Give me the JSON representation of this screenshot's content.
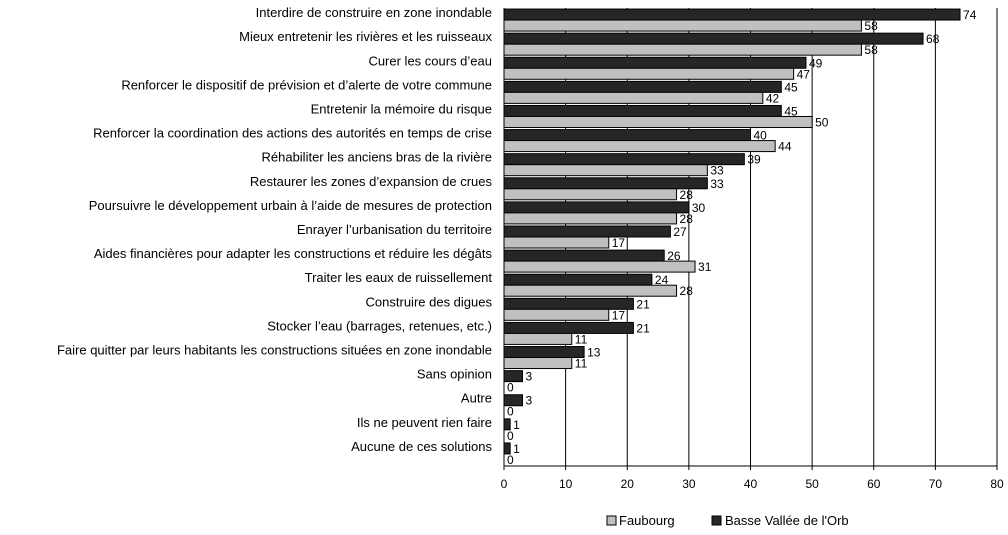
{
  "chart_data": {
    "type": "bar",
    "orientation": "horizontal",
    "title": "",
    "xlabel": "",
    "ylabel": "",
    "xlim": [
      0,
      80
    ],
    "x_ticks": [
      0,
      10,
      20,
      30,
      40,
      50,
      60,
      70,
      80
    ],
    "grid": true,
    "legend_position": "bottom",
    "categories": [
      "Interdire de construire en zone inondable",
      "Mieux entretenir les rivières et les ruisseaux",
      "Curer les cours d’eau",
      "Renforcer le dispositif de prévision et d’alerte de votre commune",
      "Entretenir la mémoire du risque",
      "Renforcer la coordination des actions des autorités en temps de crise",
      "Réhabiliter les anciens bras de la rivière",
      "Restaurer les zones d’expansion de crues",
      "Poursuivre le développement urbain à l’aide de mesures de protection",
      "Enrayer l’urbanisation du territoire",
      "Aides financières pour adapter les constructions et réduire les dégâts",
      "Traiter les eaux de ruissellement",
      "Construire des digues",
      "Stocker l’eau (barrages, retenues, etc.)",
      "Faire quitter par leurs habitants les constructions situées en zone inondable",
      "Sans opinion",
      "Autre",
      "Ils ne peuvent rien faire",
      "Aucune de ces solutions"
    ],
    "series": [
      {
        "name": "Basse Vallée de l'Orb",
        "color": "#262626",
        "values": [
          74,
          68,
          49,
          45,
          45,
          40,
          39,
          33,
          30,
          27,
          26,
          24,
          21,
          21,
          13,
          3,
          3,
          1,
          1
        ]
      },
      {
        "name": "Faubourg",
        "color": "#c0c0c0",
        "values": [
          58,
          58,
          47,
          42,
          50,
          44,
          33,
          28,
          28,
          17,
          31,
          28,
          17,
          11,
          11,
          0,
          0,
          0,
          0
        ]
      }
    ],
    "legend": [
      "Faubourg",
      "Basse Vallée de l'Orb"
    ]
  }
}
